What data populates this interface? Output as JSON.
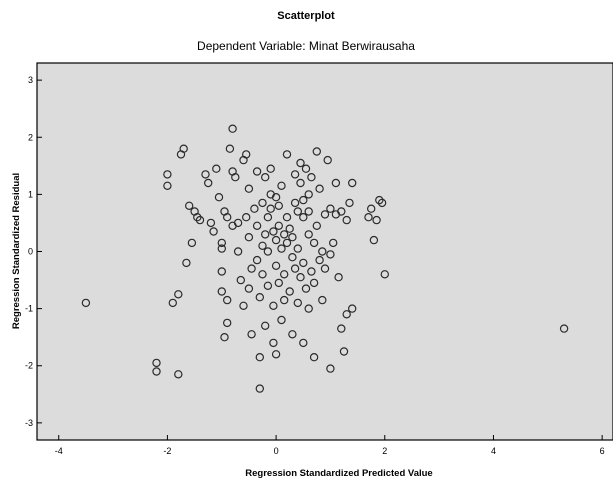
{
  "chart_data": {
    "type": "scatter",
    "title": "Scatterplot",
    "subtitle": "Dependent Variable: Minat Berwirausaha",
    "xlabel": "Regression Standardized Predicted Value",
    "ylabel": "Regression Standardized Residual",
    "xlim": [
      -4.4,
      6.2
    ],
    "ylim": [
      -3.3,
      3.3
    ],
    "x_ticks": [
      -4,
      -2,
      0,
      2,
      4,
      6
    ],
    "y_ticks": [
      -3,
      -2,
      -1,
      0,
      1,
      2,
      3
    ],
    "grid": false,
    "legend": "none",
    "colors": {
      "plot_background": "#dcdcdc",
      "marker_stroke": "#2b2b2b",
      "axis": "#000000"
    },
    "points": [
      [
        -3.5,
        -0.9
      ],
      [
        -2.2,
        -1.95
      ],
      [
        -2.2,
        -2.1
      ],
      [
        -2.0,
        1.35
      ],
      [
        -2.0,
        1.15
      ],
      [
        -1.9,
        -0.9
      ],
      [
        -1.8,
        -0.75
      ],
      [
        -1.8,
        -2.15
      ],
      [
        -1.75,
        1.7
      ],
      [
        -1.7,
        1.8
      ],
      [
        -1.65,
        -0.2
      ],
      [
        -1.6,
        0.8
      ],
      [
        -1.55,
        0.15
      ],
      [
        -1.5,
        0.7
      ],
      [
        -1.45,
        0.6
      ],
      [
        -1.4,
        0.55
      ],
      [
        -1.3,
        1.35
      ],
      [
        -1.25,
        1.2
      ],
      [
        -1.2,
        0.5
      ],
      [
        -1.15,
        0.35
      ],
      [
        -1.1,
        1.45
      ],
      [
        -1.05,
        0.95
      ],
      [
        -1.0,
        0.15
      ],
      [
        -1.0,
        0.05
      ],
      [
        -1.0,
        -0.35
      ],
      [
        -1.0,
        -0.7
      ],
      [
        -0.95,
        -1.5
      ],
      [
        -0.95,
        0.7
      ],
      [
        -0.9,
        0.6
      ],
      [
        -0.9,
        -0.85
      ],
      [
        -0.9,
        -1.25
      ],
      [
        -0.85,
        1.8
      ],
      [
        -0.8,
        1.4
      ],
      [
        -0.8,
        0.45
      ],
      [
        -0.8,
        2.15
      ],
      [
        -0.75,
        1.3
      ],
      [
        -0.7,
        0.5
      ],
      [
        -0.7,
        0.0
      ],
      [
        -0.65,
        -0.5
      ],
      [
        -0.6,
        -0.95
      ],
      [
        -0.6,
        1.6
      ],
      [
        -0.55,
        1.7
      ],
      [
        -0.55,
        0.6
      ],
      [
        -0.5,
        0.25
      ],
      [
        -0.5,
        1.1
      ],
      [
        -0.5,
        -0.65
      ],
      [
        -0.45,
        -1.45
      ],
      [
        -0.45,
        -0.3
      ],
      [
        -0.4,
        0.75
      ],
      [
        -0.35,
        1.4
      ],
      [
        -0.35,
        -0.15
      ],
      [
        -0.35,
        0.45
      ],
      [
        -0.3,
        -0.8
      ],
      [
        -0.3,
        -1.85
      ],
      [
        -0.3,
        -2.4
      ],
      [
        -0.25,
        0.1
      ],
      [
        -0.25,
        0.85
      ],
      [
        -0.25,
        -0.4
      ],
      [
        -0.2,
        0.3
      ],
      [
        -0.2,
        1.3
      ],
      [
        -0.2,
        -1.3
      ],
      [
        -0.15,
        0.0
      ],
      [
        -0.15,
        -0.6
      ],
      [
        -0.15,
        0.6
      ],
      [
        -0.1,
        1.0
      ],
      [
        -0.1,
        1.45
      ],
      [
        -0.1,
        0.75
      ],
      [
        -0.05,
        0.35
      ],
      [
        -0.05,
        -0.95
      ],
      [
        -0.05,
        -1.6
      ],
      [
        0.0,
        0.2
      ],
      [
        0.0,
        -0.25
      ],
      [
        0.0,
        0.95
      ],
      [
        0.0,
        -1.8
      ],
      [
        0.05,
        0.45
      ],
      [
        0.05,
        0.8
      ],
      [
        0.05,
        -0.55
      ],
      [
        0.1,
        0.05
      ],
      [
        0.1,
        1.15
      ],
      [
        0.1,
        -1.2
      ],
      [
        0.15,
        0.3
      ],
      [
        0.15,
        -0.4
      ],
      [
        0.15,
        -0.85
      ],
      [
        0.2,
        0.6
      ],
      [
        0.2,
        0.15
      ],
      [
        0.2,
        1.7
      ],
      [
        0.25,
        -0.7
      ],
      [
        0.25,
        0.4
      ],
      [
        0.3,
        -0.1
      ],
      [
        0.3,
        0.25
      ],
      [
        0.3,
        -1.45
      ],
      [
        0.35,
        0.85
      ],
      [
        0.35,
        1.35
      ],
      [
        0.35,
        -0.3
      ],
      [
        0.4,
        0.7
      ],
      [
        0.4,
        0.05
      ],
      [
        0.4,
        -0.9
      ],
      [
        0.45,
        1.55
      ],
      [
        0.45,
        1.2
      ],
      [
        0.45,
        -0.45
      ],
      [
        0.5,
        0.9
      ],
      [
        0.5,
        0.6
      ],
      [
        0.5,
        -0.2
      ],
      [
        0.5,
        -1.6
      ],
      [
        0.55,
        1.45
      ],
      [
        0.55,
        -0.65
      ],
      [
        0.6,
        1.0
      ],
      [
        0.6,
        0.3
      ],
      [
        0.6,
        0.7
      ],
      [
        0.6,
        -1.0
      ],
      [
        0.65,
        1.3
      ],
      [
        0.65,
        -0.35
      ],
      [
        0.7,
        0.15
      ],
      [
        0.7,
        -0.55
      ],
      [
        0.7,
        -1.85
      ],
      [
        0.75,
        1.75
      ],
      [
        0.75,
        0.45
      ],
      [
        0.8,
        1.1
      ],
      [
        0.8,
        -0.15
      ],
      [
        0.85,
        0.0
      ],
      [
        0.85,
        -0.85
      ],
      [
        0.9,
        0.65
      ],
      [
        0.9,
        -0.3
      ],
      [
        0.95,
        1.6
      ],
      [
        1.0,
        0.75
      ],
      [
        1.0,
        -0.05
      ],
      [
        1.0,
        -2.05
      ],
      [
        1.05,
        0.15
      ],
      [
        1.1,
        0.65
      ],
      [
        1.1,
        1.2
      ],
      [
        1.15,
        -0.45
      ],
      [
        1.2,
        0.7
      ],
      [
        1.2,
        -1.35
      ],
      [
        1.25,
        -1.75
      ],
      [
        1.3,
        0.55
      ],
      [
        1.3,
        -1.1
      ],
      [
        1.35,
        0.85
      ],
      [
        1.4,
        -1.0
      ],
      [
        1.4,
        1.2
      ],
      [
        1.7,
        0.6
      ],
      [
        1.75,
        0.75
      ],
      [
        1.8,
        0.2
      ],
      [
        1.85,
        0.55
      ],
      [
        1.9,
        0.9
      ],
      [
        1.95,
        0.85
      ],
      [
        2.0,
        -0.4
      ],
      [
        5.3,
        -1.35
      ]
    ]
  }
}
